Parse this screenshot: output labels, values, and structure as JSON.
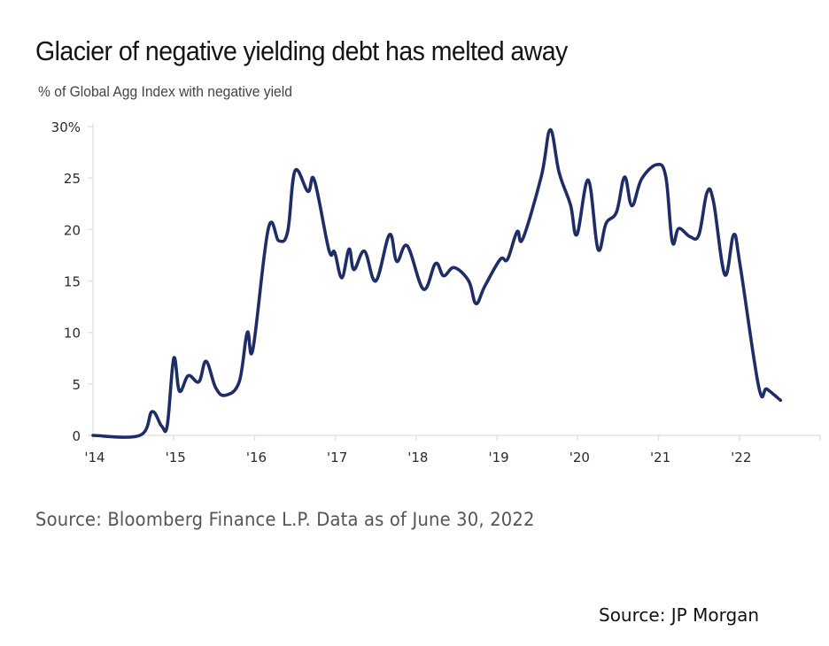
{
  "chart_data": {
    "type": "line",
    "title": "Glacier of negative yielding debt has melted away",
    "subtitle": "% of Global Agg Index with negative yield",
    "xlabel": "",
    "ylabel": "% of Global Agg Index with negative yield",
    "xlim": [
      2014,
      2023
    ],
    "ylim": [
      0,
      30
    ],
    "grid": false,
    "legend": "none",
    "x_ticks": [
      {
        "value": 2014,
        "label": "'14"
      },
      {
        "value": 2015,
        "label": "'15"
      },
      {
        "value": 2016,
        "label": "'16"
      },
      {
        "value": 2017,
        "label": "'17"
      },
      {
        "value": 2018,
        "label": "'18"
      },
      {
        "value": 2019,
        "label": "'19"
      },
      {
        "value": 2020,
        "label": "'20"
      },
      {
        "value": 2021,
        "label": "'21"
      },
      {
        "value": 2022,
        "label": "'22"
      }
    ],
    "y_ticks": [
      {
        "value": 0,
        "label": "0"
      },
      {
        "value": 5,
        "label": "5"
      },
      {
        "value": 10,
        "label": "10"
      },
      {
        "value": 15,
        "label": "15"
      },
      {
        "value": 20,
        "label": "20"
      },
      {
        "value": 25,
        "label": "25"
      },
      {
        "value": 30,
        "label": "30%"
      }
    ],
    "series": [
      {
        "name": "% of Global Agg Index with negative yield",
        "color": "#1e2d66",
        "x": [
          2014.0,
          2014.58,
          2014.73,
          2014.85,
          2014.92,
          2015.0,
          2015.07,
          2015.18,
          2015.31,
          2015.4,
          2015.52,
          2015.64,
          2015.81,
          2015.91,
          2015.98,
          2016.17,
          2016.3,
          2016.41,
          2016.5,
          2016.66,
          2016.74,
          2016.92,
          2016.99,
          2017.08,
          2017.17,
          2017.23,
          2017.36,
          2017.5,
          2017.67,
          2017.76,
          2017.89,
          2018.09,
          2018.24,
          2018.34,
          2018.47,
          2018.65,
          2018.74,
          2018.85,
          2019.04,
          2019.13,
          2019.25,
          2019.32,
          2019.55,
          2019.66,
          2019.77,
          2019.91,
          2019.99,
          2020.13,
          2020.25,
          2020.35,
          2020.48,
          2020.58,
          2020.67,
          2020.79,
          2020.98,
          2021.09,
          2021.17,
          2021.25,
          2021.39,
          2021.5,
          2021.6,
          2021.68,
          2021.82,
          2021.93,
          2022.01,
          2022.24,
          2022.34,
          2022.51
        ],
        "values": [
          0.0,
          0.0,
          2.3,
          0.9,
          1.0,
          7.5,
          4.3,
          5.8,
          5.2,
          7.2,
          4.6,
          3.9,
          5.2,
          10.0,
          8.4,
          20.1,
          18.9,
          19.8,
          25.7,
          23.7,
          24.8,
          18.0,
          17.8,
          15.3,
          18.1,
          16.1,
          17.9,
          15.0,
          19.5,
          16.9,
          18.4,
          14.2,
          16.7,
          15.5,
          16.3,
          15.0,
          12.8,
          14.5,
          17.1,
          17.1,
          19.8,
          19.1,
          25.2,
          29.7,
          25.5,
          22.4,
          19.5,
          24.8,
          18.1,
          20.6,
          21.7,
          25.1,
          22.3,
          24.9,
          26.3,
          25.1,
          18.8,
          20.1,
          19.3,
          19.5,
          23.6,
          22.7,
          15.6,
          19.5,
          16.5,
          4.7,
          4.5,
          3.4
        ]
      }
    ]
  },
  "footer": {
    "data_source": "Source: Bloomberg Finance L.P. Data as of June 30, 2022",
    "attribution": "Source:  JP Morgan"
  }
}
